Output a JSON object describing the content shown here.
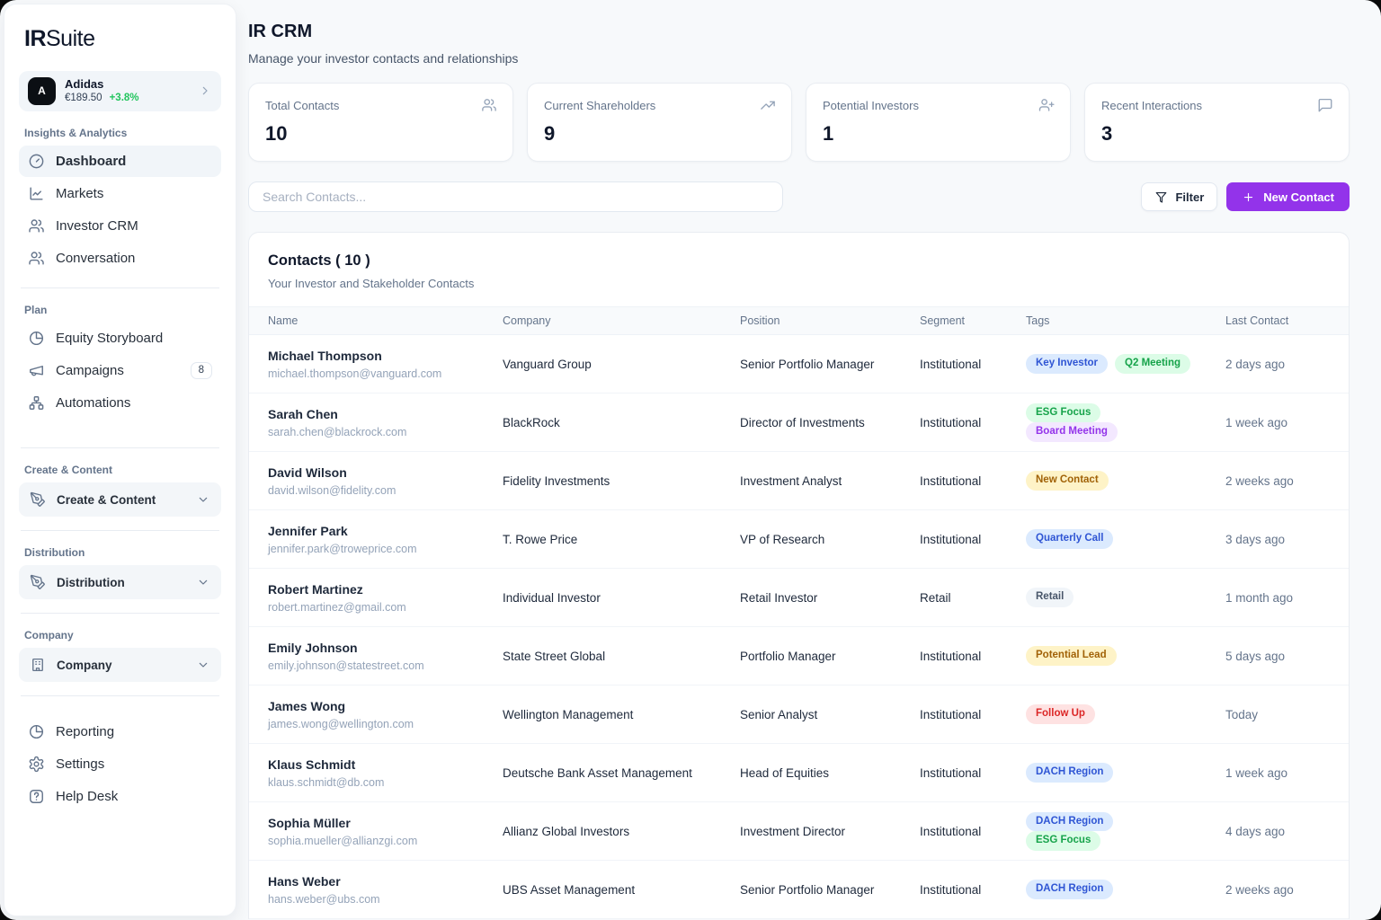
{
  "brand": {
    "bold": "IR",
    "light": "Suite"
  },
  "colors": {
    "accent": "#9333EA",
    "positive": "#22C55E"
  },
  "company_widget": {
    "avatar_letter": "A",
    "name": "Adidas",
    "price": "€189.50",
    "change": "+3.8%"
  },
  "sidebar": {
    "sections": [
      {
        "label": "Insights & Analytics",
        "items": [
          {
            "label": "Dashboard",
            "icon": "gauge-icon",
            "active": true
          },
          {
            "label": "Markets",
            "icon": "line-chart-icon"
          },
          {
            "label": "Investor CRM",
            "icon": "users-icon"
          },
          {
            "label": "Conversation",
            "icon": "users-icon"
          }
        ]
      },
      {
        "label": "Plan",
        "items": [
          {
            "label": "Equity Storyboard",
            "icon": "pie-chart-icon"
          },
          {
            "label": "Campaigns",
            "icon": "megaphone-icon",
            "badge": "8"
          },
          {
            "label": "Automations",
            "icon": "workflow-icon"
          }
        ]
      },
      {
        "label": "Create & Content",
        "items": [
          {
            "label": "Create & Content",
            "icon": "pen-icon",
            "collapsible": true
          }
        ]
      },
      {
        "label": "Distribution",
        "items": [
          {
            "label": "Distribution",
            "icon": "pen-icon",
            "collapsible": true
          }
        ]
      },
      {
        "label": "Company",
        "items": [
          {
            "label": "Company",
            "icon": "building-icon",
            "collapsible": true
          }
        ]
      }
    ],
    "footer_items": [
      {
        "label": "Reporting",
        "icon": "pie-chart-icon"
      },
      {
        "label": "Settings",
        "icon": "gear-icon"
      },
      {
        "label": "Help Desk",
        "icon": "help-icon"
      }
    ]
  },
  "header": {
    "title": "IR CRM",
    "subtitle": "Manage your investor contacts and relationships"
  },
  "stats": [
    {
      "label": "Total Contacts",
      "value": "10",
      "icon": "users-icon"
    },
    {
      "label": "Current Shareholders",
      "value": "9",
      "icon": "trending-up-icon"
    },
    {
      "label": "Potential Investors",
      "value": "1",
      "icon": "user-plus-icon"
    },
    {
      "label": "Recent Interactions",
      "value": "3",
      "icon": "message-icon"
    }
  ],
  "toolbar": {
    "search_placeholder": "Search Contacts...",
    "filter_label": "Filter",
    "new_contact_label": "New Contact"
  },
  "contacts": {
    "title": "Contacts ( 10 )",
    "subtitle": "Your Investor and Stakeholder Contacts",
    "columns": [
      "Name",
      "Company",
      "Position",
      "Segment",
      "Tags",
      "Last Contact"
    ],
    "tag_colors": {
      "blue": {
        "bg": "#DBEAFE",
        "text": "#2F55D4"
      },
      "green": {
        "bg": "#DCFCE7",
        "text": "#16A34A"
      },
      "purple": {
        "bg": "#F3E8FF",
        "text": "#9333EA"
      },
      "yellow": {
        "bg": "#FEF3C7",
        "text": "#A16207"
      },
      "red": {
        "bg": "#FEE2E2",
        "text": "#DC2626"
      },
      "gray": {
        "bg": "#F1F5F9",
        "text": "#475569"
      }
    },
    "rows": [
      {
        "name": "Michael Thompson",
        "email": "michael.thompson@vanguard.com",
        "company": "Vanguard Group",
        "position": "Senior Portfolio Manager",
        "segment": "Institutional",
        "tags": [
          {
            "label": "Key Investor",
            "color": "blue"
          },
          {
            "label": "Q2 Meeting",
            "color": "green"
          }
        ],
        "last_contact": "2 days ago"
      },
      {
        "name": "Sarah Chen",
        "email": "sarah.chen@blackrock.com",
        "company": "BlackRock",
        "position": "Director of Investments",
        "segment": "Institutional",
        "tags": [
          {
            "label": "ESG Focus",
            "color": "green"
          },
          {
            "label": "Board Meeting",
            "color": "purple"
          }
        ],
        "last_contact": "1 week ago"
      },
      {
        "name": "David Wilson",
        "email": "david.wilson@fidelity.com",
        "company": "Fidelity Investments",
        "position": "Investment Analyst",
        "segment": "Institutional",
        "tags": [
          {
            "label": "New Contact",
            "color": "yellow"
          }
        ],
        "last_contact": "2 weeks ago"
      },
      {
        "name": "Jennifer Park",
        "email": "jennifer.park@troweprice.com",
        "company": "T. Rowe Price",
        "position": "VP of Research",
        "segment": "Institutional",
        "tags": [
          {
            "label": "Quarterly Call",
            "color": "blue"
          }
        ],
        "last_contact": "3 days ago"
      },
      {
        "name": "Robert Martinez",
        "email": "robert.martinez@gmail.com",
        "company": "Individual Investor",
        "position": "Retail Investor",
        "segment": "Retail",
        "tags": [
          {
            "label": "Retail",
            "color": "gray"
          }
        ],
        "last_contact": "1 month ago"
      },
      {
        "name": "Emily Johnson",
        "email": "emily.johnson@statestreet.com",
        "company": "State Street Global",
        "position": "Portfolio Manager",
        "segment": "Institutional",
        "tags": [
          {
            "label": "Potential Lead",
            "color": "yellow"
          }
        ],
        "last_contact": "5 days ago"
      },
      {
        "name": "James Wong",
        "email": "james.wong@wellington.com",
        "company": "Wellington Management",
        "position": "Senior Analyst",
        "segment": "Institutional",
        "tags": [
          {
            "label": "Follow Up",
            "color": "red"
          }
        ],
        "last_contact": "Today"
      },
      {
        "name": "Klaus Schmidt",
        "email": "klaus.schmidt@db.com",
        "company": "Deutsche Bank Asset Management",
        "position": "Head of Equities",
        "segment": "Institutional",
        "tags": [
          {
            "label": "DACH Region",
            "color": "blue"
          }
        ],
        "last_contact": "1 week ago"
      },
      {
        "name": "Sophia Müller",
        "email": "sophia.mueller@allianzgi.com",
        "company": "Allianz Global Investors",
        "position": "Investment Director",
        "segment": "Institutional",
        "tags": [
          {
            "label": "DACH Region",
            "color": "blue"
          },
          {
            "label": "ESG Focus",
            "color": "green"
          }
        ],
        "last_contact": "4 days ago"
      },
      {
        "name": "Hans Weber",
        "email": "hans.weber@ubs.com",
        "company": "UBS Asset Management",
        "position": "Senior Portfolio Manager",
        "segment": "Institutional",
        "tags": [
          {
            "label": "DACH Region",
            "color": "blue"
          }
        ],
        "last_contact": "2 weeks ago"
      }
    ]
  }
}
